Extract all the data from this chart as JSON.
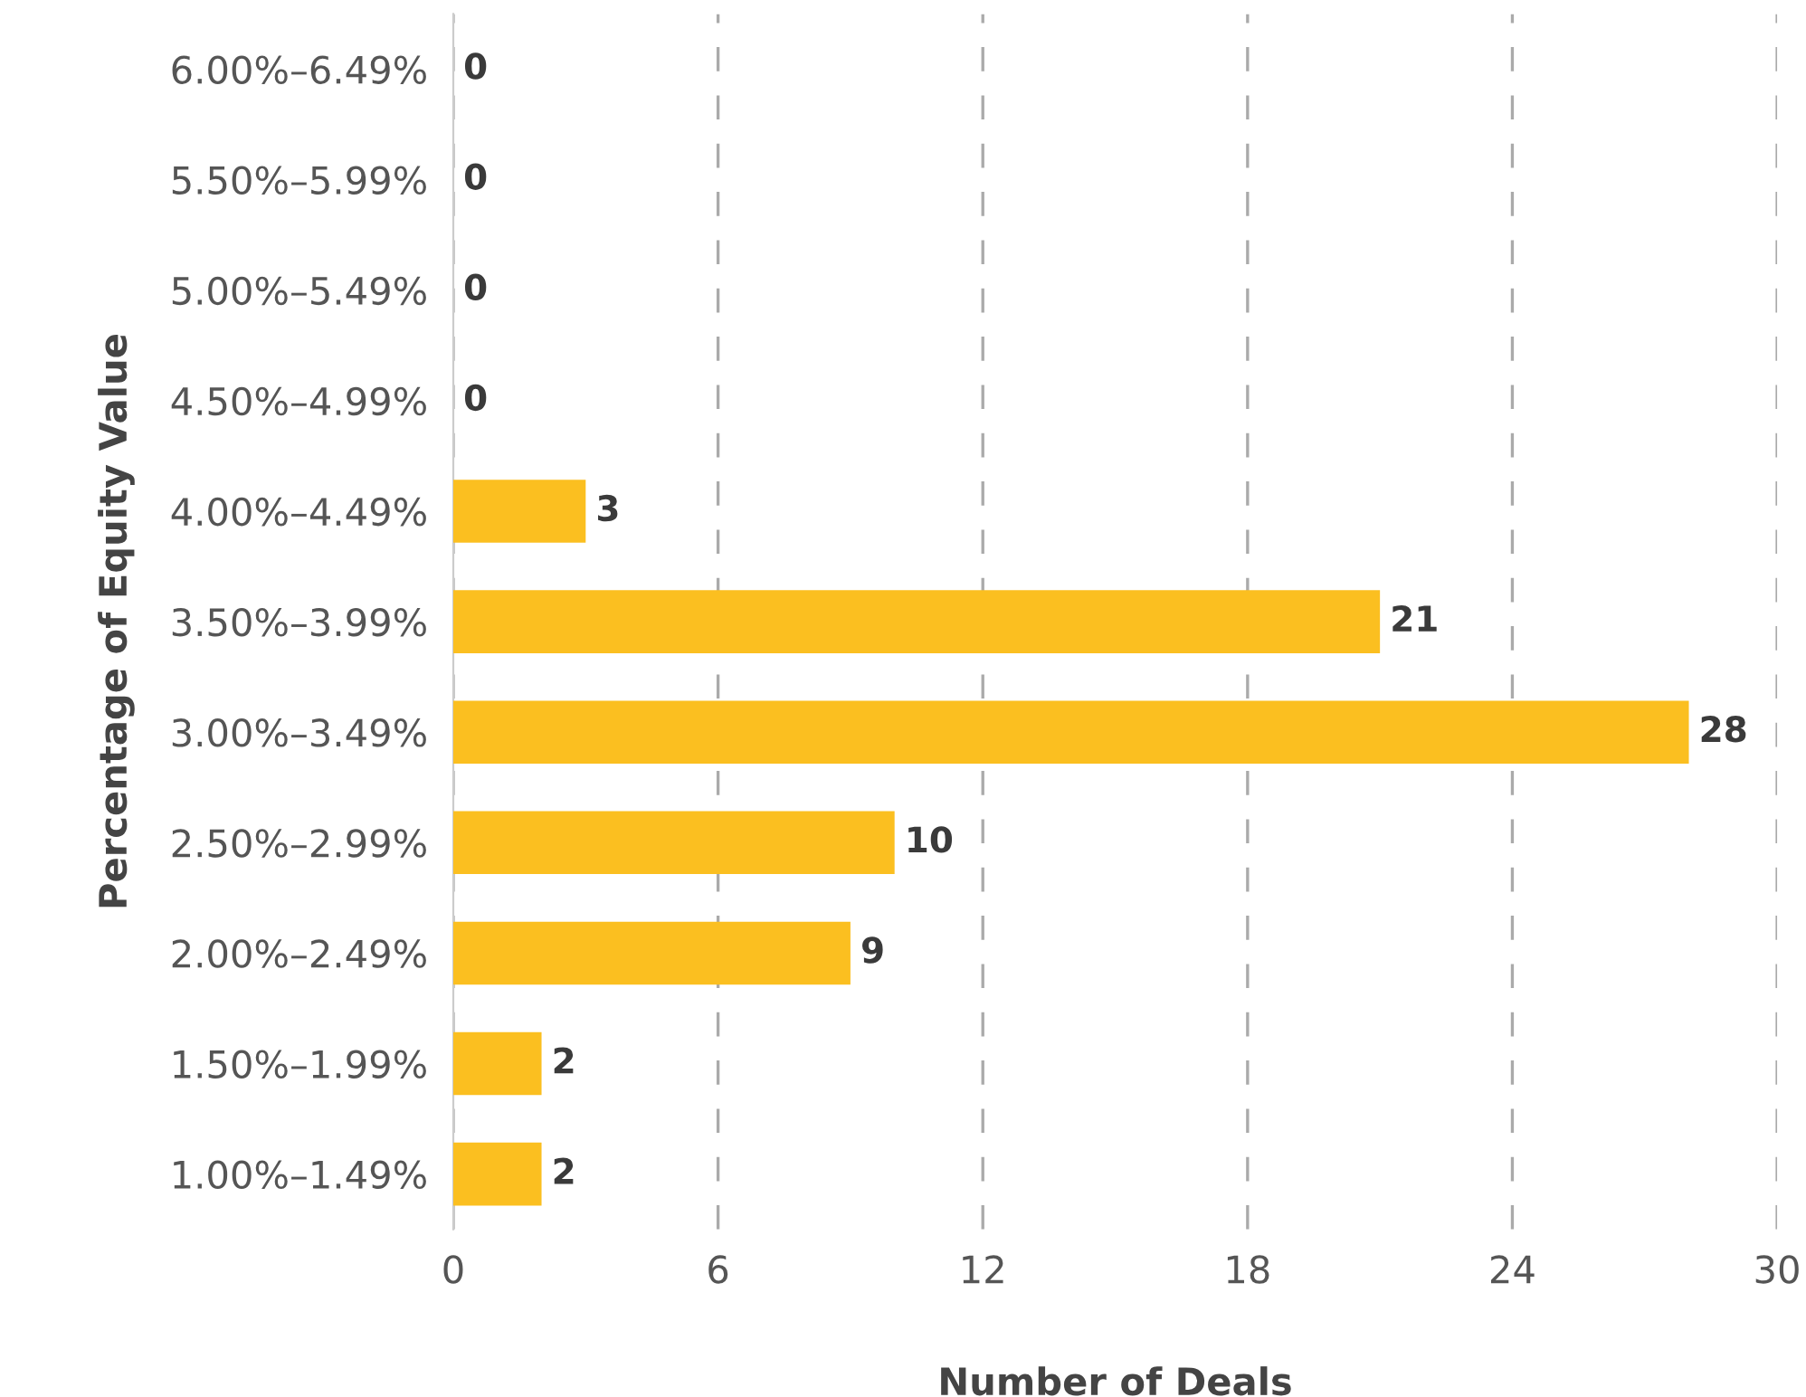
{
  "chart_data": {
    "type": "bar",
    "orientation": "horizontal",
    "xlabel": "Number of Deals",
    "ylabel": "Percentage of Equity Value",
    "categories": [
      "6.00%–6.49%",
      "5.50%–5.99%",
      "5.00%–5.49%",
      "4.50%–4.99%",
      "4.00%–4.49%",
      "3.50%–3.99%",
      "3.00%–3.49%",
      "2.50%–2.99%",
      "2.00%–2.49%",
      "1.50%–1.99%",
      "1.00%–1.49%"
    ],
    "values": [
      0,
      0,
      0,
      0,
      3,
      21,
      28,
      10,
      9,
      2,
      2
    ],
    "color": "#fbbf20",
    "xlim": [
      0,
      30
    ],
    "xticks": [
      0,
      6,
      12,
      18,
      24,
      30
    ],
    "grid": "x",
    "line_style": "dashed",
    "data_labels": true,
    "legend": false
  }
}
